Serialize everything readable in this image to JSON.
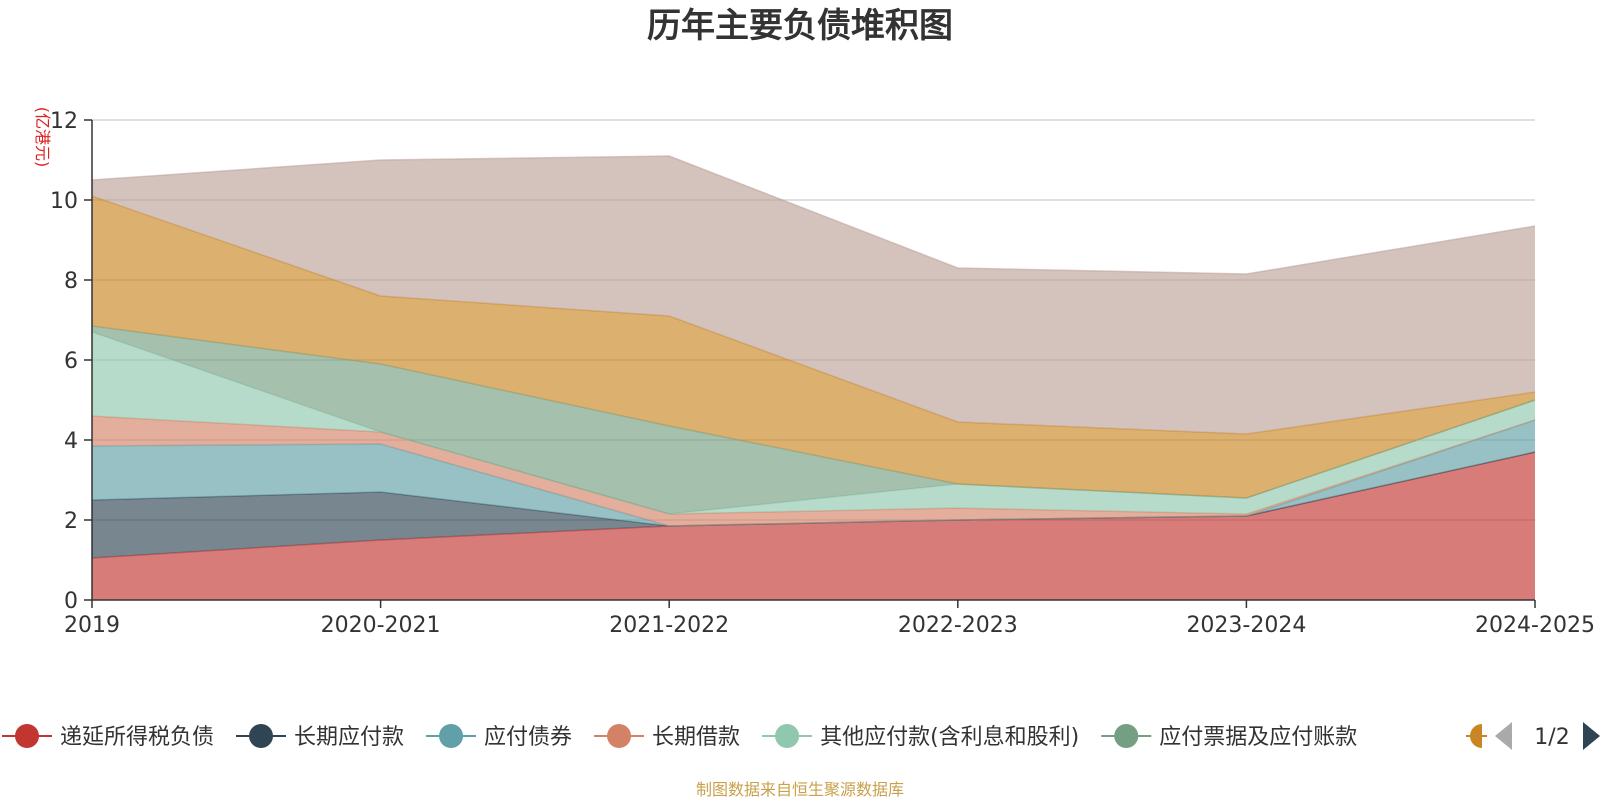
{
  "chart_data": {
    "type": "area",
    "stacked": true,
    "title": "历年主要负债堆积图",
    "ylabel": "(亿港元)",
    "categories": [
      "2019",
      "2020-2021",
      "2021-2022",
      "2022-2023",
      "2023-2024",
      "2024-2025"
    ],
    "ylim": [
      0,
      12
    ],
    "yticks": [
      0,
      2,
      4,
      6,
      8,
      10,
      12
    ],
    "grid": true,
    "source": "制图数据来自恒生聚源数据库",
    "series": [
      {
        "name": "递延所得税负债",
        "color": "#c23531",
        "values": [
          1.05,
          1.5,
          1.85,
          2.0,
          2.1,
          3.7
        ]
      },
      {
        "name": "长期应付款",
        "color": "#2f4554",
        "values": [
          1.45,
          1.2,
          0.0,
          0.0,
          0.0,
          0.0
        ]
      },
      {
        "name": "应付债券",
        "color": "#61a0a8",
        "values": [
          1.35,
          1.2,
          0.0,
          0.0,
          0.0,
          0.8
        ]
      },
      {
        "name": "长期借款",
        "color": "#d48265",
        "values": [
          0.75,
          0.3,
          0.3,
          0.3,
          0.05,
          0.0
        ]
      },
      {
        "name": "其他应付款(含利息和股利)",
        "color": "#91c7ae",
        "values": [
          2.1,
          0.0,
          0.0,
          0.6,
          0.4,
          0.5
        ]
      },
      {
        "name": "应付票据及应付账款",
        "color": "#749f83",
        "values": [
          0.15,
          1.7,
          2.2,
          0.0,
          0.0,
          0.0
        ]
      },
      {
        "name": "",
        "color": "#ca8622",
        "values": [
          3.25,
          1.7,
          2.75,
          1.55,
          1.6,
          0.2
        ]
      },
      {
        "name": "",
        "color": "#bda29a",
        "values": [
          0.4,
          3.4,
          4.0,
          3.85,
          4.0,
          4.15
        ]
      }
    ],
    "legend": {
      "placement": "bottom",
      "page": "1/2",
      "visible_items": [
        "递延所得税负债",
        "长期应付款",
        "应付债券",
        "长期借款",
        "其他应付款(含利息和股利)",
        "应付票据及应付账款"
      ]
    }
  }
}
